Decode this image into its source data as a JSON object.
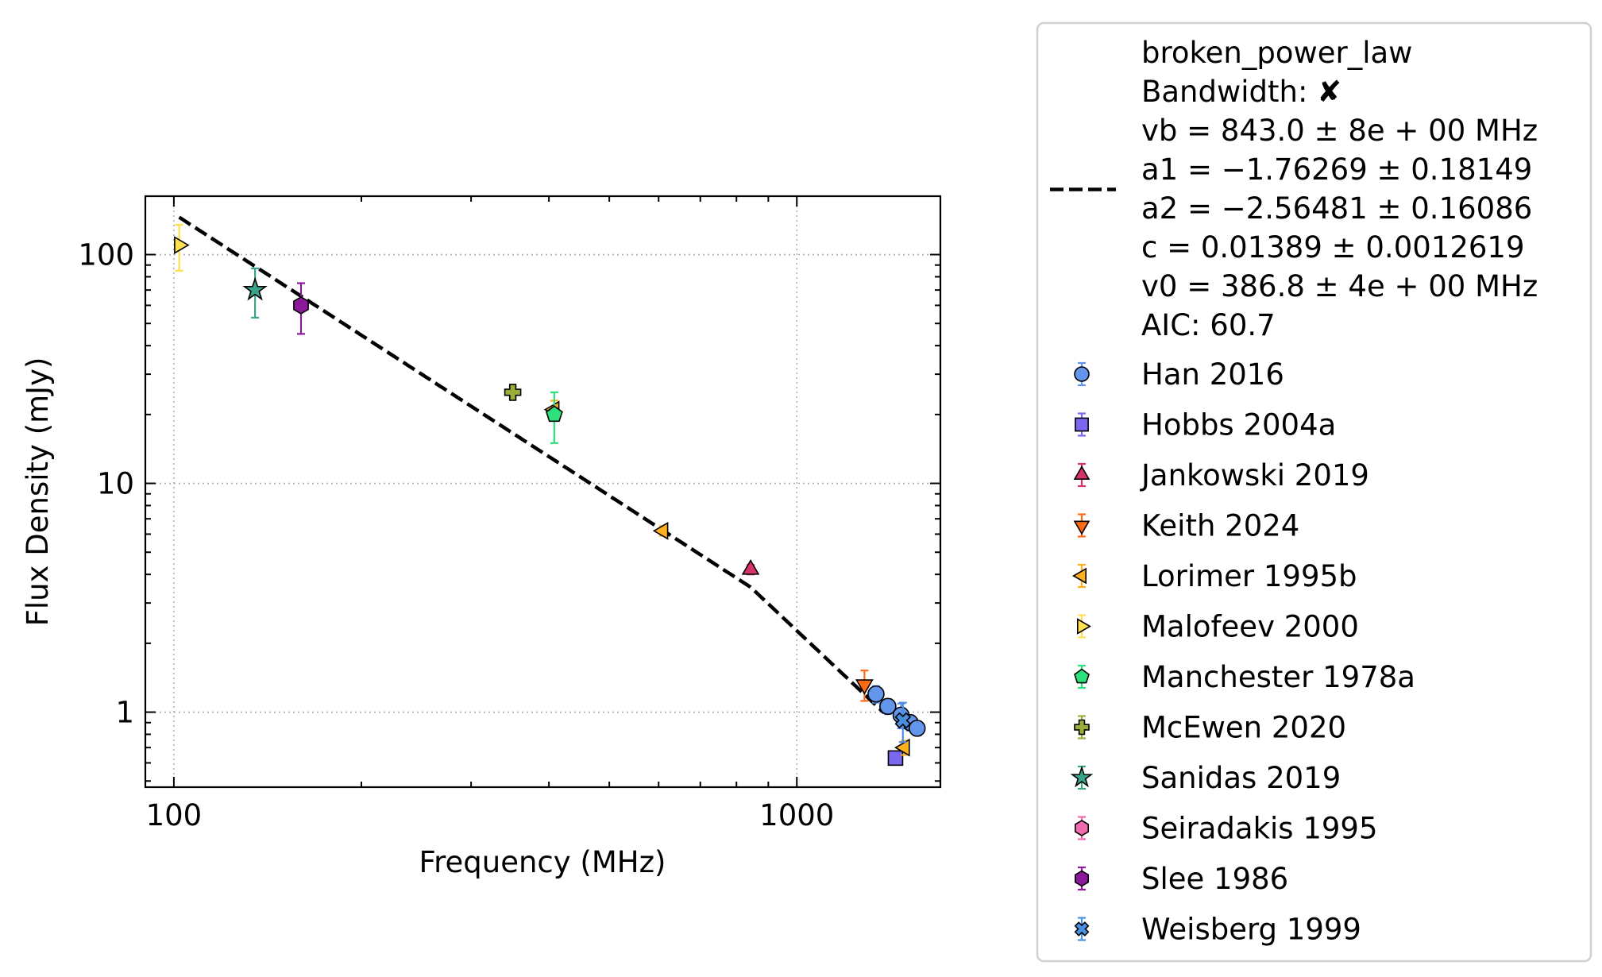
{
  "chart_data": {
    "type": "scatter",
    "xlabel": "Frequency (MHz)",
    "ylabel": "Flux Density (mJy)",
    "xscale": "log",
    "yscale": "log",
    "xlim": [
      90,
      1700
    ],
    "ylim": [
      0.47,
      180
    ],
    "xticks": [
      {
        "value": 100,
        "label": "100"
      },
      {
        "value": 1000,
        "label": "1000"
      }
    ],
    "yticks": [
      {
        "value": 1,
        "label": "1"
      },
      {
        "value": 10,
        "label": "10"
      },
      {
        "value": 100,
        "label": "100"
      }
    ],
    "grid": true,
    "legend_position": "outside-right",
    "fit": {
      "name": "broken_power_law",
      "lines": [
        "broken_power_law",
        "Bandwidth: ✘",
        "vb = 843.0 ± 8e + 00 MHz",
        "a1 = −1.76269 ± 0.18149",
        "a2 = −2.56481 ± 0.16086",
        "c = 0.01389 ± 0.0012619",
        "v0 = 386.8 ± 4e + 00 MHz",
        "AIC: 60.7"
      ],
      "vb": 843.0,
      "a1": -1.76269,
      "a2": -2.56481,
      "c": 0.01389,
      "v0": 386.8,
      "x_range": [
        102,
        1380
      ],
      "color": "#000000"
    },
    "series": [
      {
        "name": "Han 2016",
        "marker": "circle",
        "color": "#6495ED",
        "points": [
          {
            "x": 1340,
            "y": 1.2,
            "err": 0.1
          },
          {
            "x": 1400,
            "y": 1.06,
            "err": 0.08
          },
          {
            "x": 1470,
            "y": 0.97,
            "err": 0.12
          },
          {
            "x": 1520,
            "y": 0.9,
            "err": 0.07
          },
          {
            "x": 1560,
            "y": 0.85,
            "err": 0.06
          }
        ]
      },
      {
        "name": "Hobbs 2004a",
        "marker": "square",
        "color": "#7B68EE",
        "points": [
          {
            "x": 1440,
            "y": 0.63,
            "err": 0.03
          }
        ]
      },
      {
        "name": "Jankowski 2019",
        "marker": "triangle-up",
        "color": "#D6336C",
        "points": [
          {
            "x": 843,
            "y": 4.2,
            "err": 0.2
          }
        ]
      },
      {
        "name": "Keith 2024",
        "marker": "triangle-down",
        "color": "#FF6A13",
        "points": [
          {
            "x": 1284,
            "y": 1.32,
            "err": 0.2
          }
        ]
      },
      {
        "name": "Lorimer 1995b",
        "marker": "triangle-left",
        "color": "#FFB020",
        "points": [
          {
            "x": 610,
            "y": 6.2,
            "err": 0.3
          },
          {
            "x": 408,
            "y": 21,
            "err": 2
          },
          {
            "x": 1490,
            "y": 0.7,
            "err": 0.05
          }
        ]
      },
      {
        "name": "Malofeev 2000",
        "marker": "triangle-right",
        "color": "#FFE050",
        "points": [
          {
            "x": 102,
            "y": 110,
            "err": 25
          }
        ]
      },
      {
        "name": "Manchester 1978a",
        "marker": "pentagon",
        "color": "#2EE07A",
        "points": [
          {
            "x": 408,
            "y": 20,
            "err": 5
          }
        ]
      },
      {
        "name": "McEwen 2020",
        "marker": "plus",
        "color": "#9AAE3A",
        "points": [
          {
            "x": 350,
            "y": 25,
            "err": 1.5
          }
        ]
      },
      {
        "name": "Sanidas 2019",
        "marker": "star",
        "color": "#3BA38A",
        "points": [
          {
            "x": 135,
            "y": 70,
            "err": 17
          }
        ]
      },
      {
        "name": "Seiradakis 1995",
        "marker": "hexagon",
        "color": "#F06AB0",
        "points": []
      },
      {
        "name": "Slee 1986",
        "marker": "hexagon",
        "color": "#8B1A9A",
        "points": [
          {
            "x": 160,
            "y": 60,
            "err": 15
          }
        ]
      },
      {
        "name": "Weisberg 1999",
        "marker": "x",
        "color": "#4A90E2",
        "points": [
          {
            "x": 1480,
            "y": 0.92,
            "err": 0.18
          }
        ]
      }
    ]
  }
}
